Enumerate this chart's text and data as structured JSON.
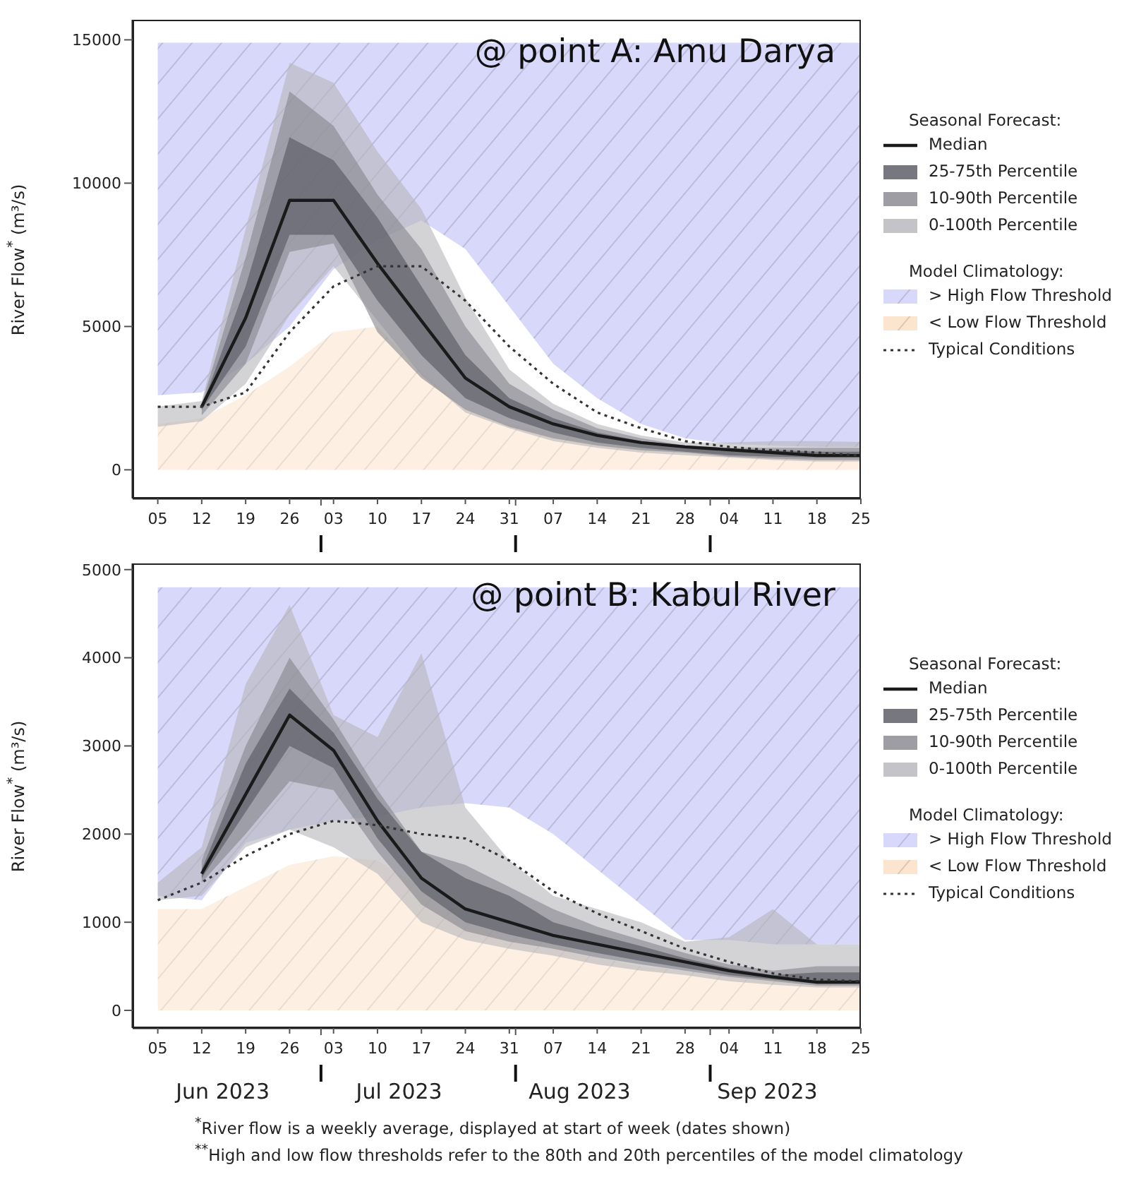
{
  "chart_data": [
    {
      "type": "area",
      "title": "@ point A: Amu Darya",
      "ylabel": "River Flow$^{*}$ (m³/s)",
      "legend_title": "Seasonal Forecast:",
      "legend": "right",
      "x": [
        "2023-06-05",
        "2023-06-12",
        "2023-06-19",
        "2023-06-26",
        "2023-07-03",
        "2023-07-10",
        "2023-07-17",
        "2023-07-24",
        "2023-07-31",
        "2023-08-07",
        "2023-08-14",
        "2023-08-21",
        "2023-08-28",
        "2023-09-04",
        "2023-09-11",
        "2023-09-18",
        "2023-09-25"
      ],
      "xlim": [
        "2023-06-01",
        "2023-09-25"
      ],
      "xticks": [
        {
          "value": "2023-06-05",
          "label": "05"
        },
        {
          "value": "2023-06-12",
          "label": "12"
        },
        {
          "value": "2023-06-19",
          "label": "19"
        },
        {
          "value": "2023-06-26",
          "label": "26"
        },
        {
          "value": "2023-07-01",
          "label": null
        },
        {
          "value": "2023-07-03",
          "label": "03"
        },
        {
          "value": "2023-07-10",
          "label": "10"
        },
        {
          "value": "2023-07-17",
          "label": "17"
        },
        {
          "value": "2023-07-24",
          "label": "24"
        },
        {
          "value": "2023-07-31",
          "label": "31"
        },
        {
          "value": "2023-08-01",
          "label": null
        },
        {
          "value": "2023-08-07",
          "label": "07"
        },
        {
          "value": "2023-08-14",
          "label": "14"
        },
        {
          "value": "2023-08-21",
          "label": "21"
        },
        {
          "value": "2023-08-28",
          "label": "28"
        },
        {
          "value": "2023-09-01",
          "label": null
        },
        {
          "value": "2023-09-04",
          "label": "04"
        },
        {
          "value": "2023-09-11",
          "label": "11"
        },
        {
          "value": "2023-09-18",
          "label": "18"
        },
        {
          "value": "2023-09-25",
          "label": "25"
        }
      ],
      "ylim": [
        -1000,
        15700
      ],
      "yticks": [
        0,
        5000,
        10000,
        15000
      ],
      "annotations": [
        "Model Climatology:"
      ],
      "series": [
        {
          "name": "Median",
          "type": "line",
          "color": "#1a1a1a",
          "values": [
            null,
            2200,
            5300,
            9400,
            9400,
            7200,
            5200,
            3200,
            2200,
            1600,
            1200,
            950,
            800,
            700,
            600,
            500,
            500
          ]
        },
        {
          "name": "25-75th Percentile",
          "type": "area",
          "color": "#55555f",
          "values": [
            null,
            null,
            null,
            null,
            null,
            null,
            null,
            null,
            null,
            null,
            null,
            null,
            null,
            null,
            null,
            null,
            null
          ],
          "lower": [
            null,
            2100,
            4300,
            8200,
            8200,
            5900,
            4000,
            2500,
            1800,
            1300,
            950,
            770,
            630,
            510,
            460,
            430,
            430
          ],
          "upper": [
            null,
            2200,
            6400,
            11600,
            10800,
            8800,
            6400,
            4000,
            2500,
            1800,
            1300,
            1000,
            850,
            700,
            680,
            630,
            630
          ]
        },
        {
          "name": "10-90th Percentile",
          "type": "area",
          "color": "#85858c",
          "values": [
            null,
            null,
            null,
            null,
            null,
            null,
            null,
            null,
            null,
            null,
            null,
            null,
            null,
            null,
            null,
            null,
            null
          ],
          "lower": [
            null,
            1900,
            3700,
            7600,
            7900,
            4800,
            3200,
            2100,
            1500,
            1100,
            850,
            680,
            600,
            460,
            390,
            340,
            340
          ],
          "upper": [
            null,
            2300,
            7400,
            13200,
            12000,
            9600,
            7700,
            5000,
            3000,
            2100,
            1450,
            1100,
            850,
            770,
            770,
            770,
            770
          ]
        },
        {
          "name": "0-100th Percentile",
          "type": "area",
          "color": "#b5b5ba",
          "values": [
            null,
            null,
            null,
            null,
            null,
            null,
            null,
            null,
            null,
            null,
            null,
            null,
            null,
            null,
            null,
            null,
            null
          ],
          "lower": [
            1500,
            1700,
            3000,
            5400,
            7100,
            5200,
            3300,
            2000,
            1450,
            1000,
            770,
            600,
            510,
            430,
            340,
            290,
            290
          ],
          "upper": [
            2200,
            2400,
            8400,
            14200,
            13500,
            11100,
            9100,
            6000,
            3500,
            2300,
            1600,
            1200,
            950,
            950,
            1000,
            1000,
            970
          ]
        },
        {
          "name": "> High Flow Threshold",
          "type": "area",
          "color": "#d8d8fa",
          "values": [
            null,
            null,
            null,
            null,
            null,
            null,
            null,
            null,
            null,
            null,
            null,
            null,
            null,
            null,
            null,
            null,
            null
          ],
          "lower": [
            2600,
            2700,
            3700,
            5000,
            7000,
            8000,
            8700,
            7700,
            5700,
            3700,
            2500,
            1600,
            1100,
            900,
            850,
            800,
            800
          ],
          "upper": [
            14900,
            14900,
            14900,
            14900,
            14900,
            14900,
            14900,
            14900,
            14900,
            14900,
            14900,
            14900,
            14900,
            14900,
            14900,
            14900,
            14900
          ]
        },
        {
          "name": "< Low Flow Threshold",
          "type": "area",
          "color": "#fbe5cf",
          "values": [
            1600,
            1800,
            2600,
            3600,
            4800,
            5000,
            3400,
            2100,
            1600,
            1300,
            1100,
            900,
            800,
            700,
            600,
            500,
            450
          ]
        },
        {
          "name": "Typical Conditions",
          "type": "line",
          "line_style": "dotted",
          "color": "#333333",
          "values": [
            2200,
            2200,
            2700,
            4800,
            6400,
            7100,
            7100,
            5900,
            4300,
            3000,
            2000,
            1450,
            1000,
            800,
            680,
            600,
            500
          ]
        }
      ]
    },
    {
      "type": "area",
      "title": "@ point B: Kabul River",
      "ylabel": "River Flow$^{*}$ (m³/s)",
      "legend_title": "Seasonal Forecast:",
      "legend": "right",
      "x": [
        "2023-06-05",
        "2023-06-12",
        "2023-06-19",
        "2023-06-26",
        "2023-07-03",
        "2023-07-10",
        "2023-07-17",
        "2023-07-24",
        "2023-07-31",
        "2023-08-07",
        "2023-08-14",
        "2023-08-21",
        "2023-08-28",
        "2023-09-04",
        "2023-09-11",
        "2023-09-18",
        "2023-09-25"
      ],
      "xlim": [
        "2023-06-01",
        "2023-09-25"
      ],
      "xticks": [
        {
          "value": "2023-06-05",
          "label": "05"
        },
        {
          "value": "2023-06-12",
          "label": "12"
        },
        {
          "value": "2023-06-19",
          "label": "19"
        },
        {
          "value": "2023-06-26",
          "label": "26"
        },
        {
          "value": "2023-07-01",
          "label": null
        },
        {
          "value": "2023-07-03",
          "label": "03"
        },
        {
          "value": "2023-07-10",
          "label": "10"
        },
        {
          "value": "2023-07-17",
          "label": "17"
        },
        {
          "value": "2023-07-24",
          "label": "24"
        },
        {
          "value": "2023-07-31",
          "label": "31"
        },
        {
          "value": "2023-08-01",
          "label": null
        },
        {
          "value": "2023-08-07",
          "label": "07"
        },
        {
          "value": "2023-08-14",
          "label": "14"
        },
        {
          "value": "2023-08-21",
          "label": "21"
        },
        {
          "value": "2023-08-28",
          "label": "28"
        },
        {
          "value": "2023-09-01",
          "label": null
        },
        {
          "value": "2023-09-04",
          "label": "04"
        },
        {
          "value": "2023-09-11",
          "label": "11"
        },
        {
          "value": "2023-09-18",
          "label": "18"
        },
        {
          "value": "2023-09-25",
          "label": "25"
        }
      ],
      "ylim": [
        -200,
        5070
      ],
      "yticks": [
        0,
        1000,
        2000,
        3000,
        4000,
        5000
      ],
      "annotations": [
        "Model Climatology:",
        "Jun 2023",
        "Jul 2023",
        "Aug 2023",
        "Sep 2023",
        "$^{*}$River flow is a weekly average, displayed at start of week (dates shown)",
        "$^{**}$High and low flow thresholds refer to the 80th and 20th percentiles of the model climatology"
      ],
      "series": [
        {
          "name": "Median",
          "type": "line",
          "color": "#1a1a1a",
          "values": [
            null,
            1550,
            2450,
            3350,
            2950,
            2150,
            1500,
            1150,
            1000,
            850,
            750,
            650,
            550,
            450,
            380,
            320,
            320
          ]
        },
        {
          "name": "25-75th Percentile",
          "type": "area",
          "color": "#55555f",
          "values": [
            null,
            null,
            null,
            null,
            null,
            null,
            null,
            null,
            null,
            null,
            null,
            null,
            null,
            null,
            null,
            null,
            null
          ],
          "lower": [
            null,
            1500,
            2250,
            3000,
            2750,
            1950,
            1350,
            1000,
            860,
            750,
            650,
            560,
            480,
            400,
            350,
            300,
            300
          ],
          "upper": [
            null,
            1600,
            2800,
            3650,
            3150,
            2400,
            1800,
            1500,
            1300,
            1000,
            860,
            730,
            590,
            480,
            400,
            430,
            430
          ]
        },
        {
          "name": "10-90th Percentile",
          "type": "area",
          "color": "#85858c",
          "values": [
            null,
            null,
            null,
            null,
            null,
            null,
            null,
            null,
            null,
            null,
            null,
            null,
            null,
            null,
            null,
            null,
            null
          ],
          "lower": [
            null,
            1450,
            2000,
            2600,
            2500,
            1800,
            1200,
            900,
            780,
            700,
            600,
            520,
            450,
            380,
            330,
            280,
            280
          ],
          "upper": [
            null,
            1700,
            3000,
            4000,
            3300,
            2500,
            1800,
            1650,
            1400,
            1150,
            950,
            800,
            650,
            520,
            450,
            500,
            500
          ]
        },
        {
          "name": "0-100th Percentile",
          "type": "area",
          "color": "#b5b5ba",
          "values": [
            null,
            null,
            null,
            null,
            null,
            null,
            null,
            null,
            null,
            null,
            null,
            null,
            null,
            null,
            null,
            null,
            null
          ],
          "lower": [
            1250,
            1300,
            1850,
            2050,
            1850,
            1550,
            1000,
            800,
            700,
            620,
            520,
            450,
            400,
            330,
            290,
            260,
            260
          ],
          "upper": [
            1450,
            1850,
            3700,
            4600,
            3350,
            3100,
            4050,
            2300,
            1700,
            1300,
            1150,
            1000,
            780,
            830,
            1150,
            750,
            750
          ]
        },
        {
          "name": "> High Flow Threshold",
          "type": "area",
          "color": "#d8d8fa",
          "values": [
            null,
            null,
            null,
            null,
            null,
            null,
            null,
            null,
            null,
            null,
            null,
            null,
            null,
            null,
            null,
            null,
            null
          ],
          "lower": [
            1300,
            1250,
            1900,
            2050,
            2150,
            2200,
            2300,
            2350,
            2300,
            2000,
            1600,
            1200,
            800,
            800,
            750,
            750,
            750
          ],
          "upper": [
            4800,
            4800,
            4800,
            4800,
            4800,
            4800,
            4800,
            4800,
            4800,
            4800,
            4800,
            4800,
            4800,
            4800,
            4800,
            4800,
            4800
          ]
        },
        {
          "name": "< Low Flow Threshold",
          "type": "area",
          "color": "#fbe5cf",
          "values": [
            1150,
            1150,
            1400,
            1650,
            1750,
            1700,
            1400,
            1050,
            850,
            750,
            600,
            500,
            450,
            400,
            350,
            300,
            280
          ]
        },
        {
          "name": "Typical Conditions",
          "type": "line",
          "line_style": "dotted",
          "color": "#333333",
          "values": [
            1250,
            1450,
            1750,
            2000,
            2150,
            2100,
            2000,
            1950,
            1700,
            1350,
            1100,
            900,
            700,
            550,
            420,
            350,
            330
          ]
        }
      ]
    }
  ]
}
